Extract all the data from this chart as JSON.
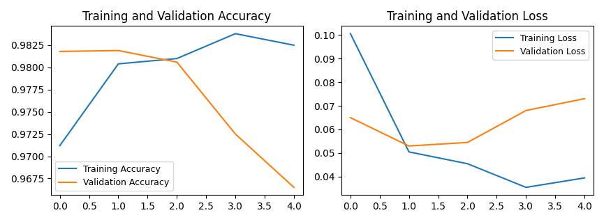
{
  "acc_title": "Training and Validation Accuracy",
  "loss_title": "Training and Validation Loss",
  "x": [
    0,
    1,
    2,
    3,
    4
  ],
  "train_acc": [
    0.9712,
    0.9804,
    0.981,
    0.9838,
    0.9825
  ],
  "val_acc": [
    0.9818,
    0.9819,
    0.9806,
    0.9725,
    0.9665
  ],
  "train_loss": [
    0.1005,
    0.0505,
    0.0455,
    0.0355,
    0.0395
  ],
  "val_loss": [
    0.065,
    0.053,
    0.0545,
    0.068,
    0.073
  ],
  "train_acc_label": "Training Accuracy",
  "val_acc_label": "Validation Accuracy",
  "train_loss_label": "Training Loss",
  "val_loss_label": "Validation Loss",
  "color_blue": "#1f77b4",
  "color_orange": "#ff7f0e",
  "xticks": [
    0.0,
    0.5,
    1.0,
    1.5,
    2.0,
    2.5,
    3.0,
    3.5,
    4.0
  ],
  "xlim": [
    -0.15,
    4.15
  ]
}
